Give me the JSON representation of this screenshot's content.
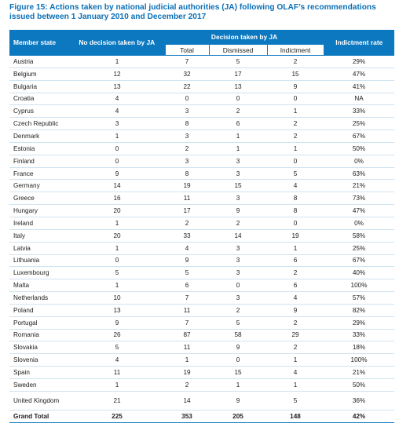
{
  "figure": {
    "label": "Figure 15:",
    "title": "Actions taken by national judicial authorities (JA) following OLAF’s recommendations issued between 1 January 2010 and December 2017"
  },
  "table": {
    "headers": {
      "member_state": "Member state",
      "no_decision": "No decision taken by JA",
      "decision": "Decision taken by JA",
      "indictment_rate": "Indictment rate",
      "total": "Total",
      "dismissed": "Dismissed",
      "indictment": "Indictment"
    },
    "rows": [
      [
        "Austria",
        "1",
        "7",
        "5",
        "2",
        "29%"
      ],
      [
        "Belgium",
        "12",
        "32",
        "17",
        "15",
        "47%"
      ],
      [
        "Bulgaria",
        "13",
        "22",
        "13",
        "9",
        "41%"
      ],
      [
        "Croatia",
        "4",
        "0",
        "0",
        "0",
        "NA"
      ],
      [
        "Cyprus",
        "4",
        "3",
        "2",
        "1",
        "33%"
      ],
      [
        "Czech Republic",
        "3",
        "8",
        "6",
        "2",
        "25%"
      ],
      [
        "Denmark",
        "1",
        "3",
        "1",
        "2",
        "67%"
      ],
      [
        "Estonia",
        "0",
        "2",
        "1",
        "1",
        "50%"
      ],
      [
        "Finland",
        "0",
        "3",
        "3",
        "0",
        "0%"
      ],
      [
        "France",
        "9",
        "8",
        "3",
        "5",
        "63%"
      ],
      [
        "Germany",
        "14",
        "19",
        "15",
        "4",
        "21%"
      ],
      [
        "Greece",
        "16",
        "11",
        "3",
        "8",
        "73%"
      ],
      [
        "Hungary",
        "20",
        "17",
        "9",
        "8",
        "47%"
      ],
      [
        "Ireland",
        "1",
        "2",
        "2",
        "0",
        "0%"
      ],
      [
        "Italy",
        "20",
        "33",
        "14",
        "19",
        "58%"
      ],
      [
        "Latvia",
        "1",
        "4",
        "3",
        "1",
        "25%"
      ],
      [
        "Lithuania",
        "0",
        "9",
        "3",
        "6",
        "67%"
      ],
      [
        "Luxembourg",
        "5",
        "5",
        "3",
        "2",
        "40%"
      ],
      [
        "Malta",
        "1",
        "6",
        "0",
        "6",
        "100%"
      ],
      [
        "Netherlands",
        "10",
        "7",
        "3",
        "4",
        "57%"
      ],
      [
        "Poland",
        "13",
        "11",
        "2",
        "9",
        "82%"
      ],
      [
        "Portugal",
        "9",
        "7",
        "5",
        "2",
        "29%"
      ],
      [
        "Romania",
        "26",
        "87",
        "58",
        "29",
        "33%"
      ],
      [
        "Slovakia",
        "5",
        "11",
        "9",
        "2",
        "18%"
      ],
      [
        "Slovenia",
        "4",
        "1",
        "0",
        "1",
        "100%"
      ],
      [
        "Spain",
        "11",
        "19",
        "15",
        "4",
        "21%"
      ],
      [
        "Sweden",
        "1",
        "2",
        "1",
        "1",
        "50%"
      ],
      [
        "United Kingdom",
        "21",
        "14",
        "9",
        "5",
        "36%"
      ]
    ],
    "grand_total": [
      "Grand Total",
      "225",
      "353",
      "205",
      "148",
      "42%"
    ]
  }
}
